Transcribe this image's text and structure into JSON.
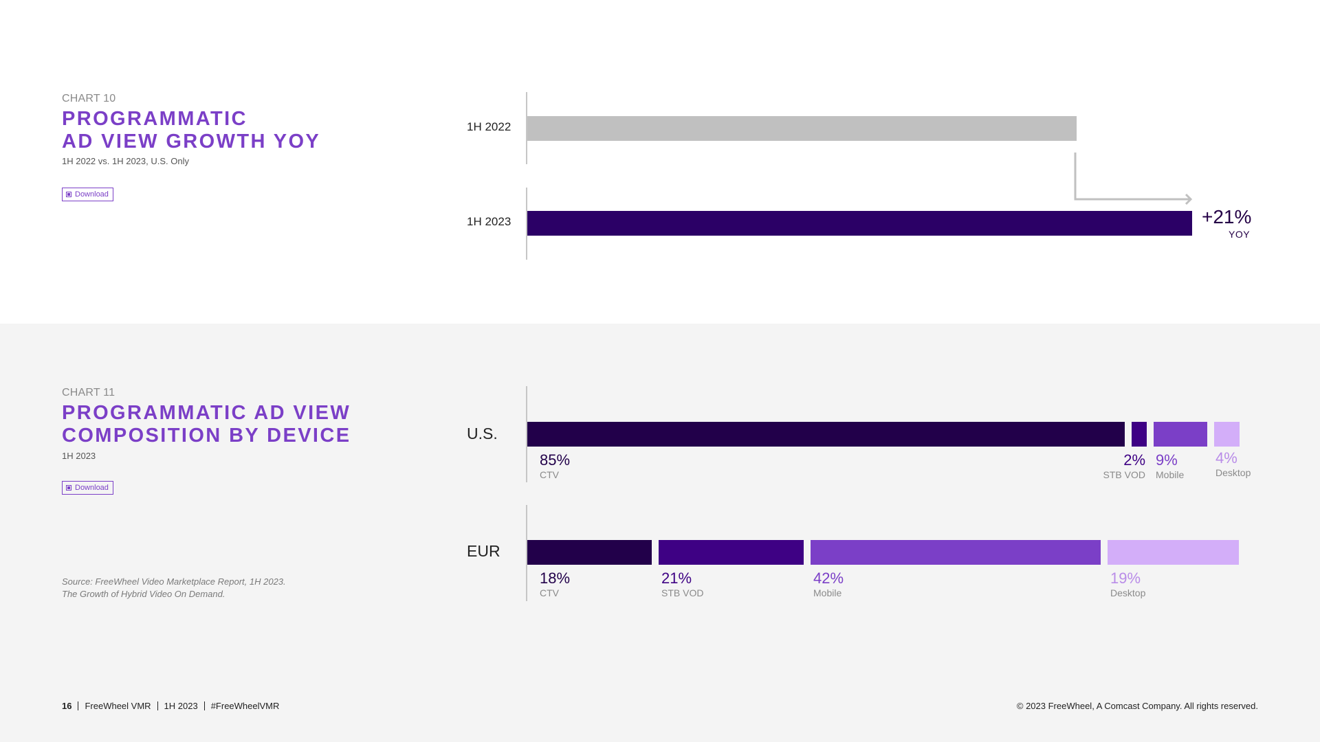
{
  "chart10": {
    "label": "CHART 10",
    "title_line1": "PROGRAMMATIC",
    "title_line2": "AD VIEW GROWTH YOY",
    "subtitle": "1H 2022 vs. 1H 2023, U.S. Only",
    "download_label": "Download"
  },
  "chart11": {
    "label": "CHART 11",
    "title_line1": "PROGRAMMATIC AD VIEW",
    "title_line2": "COMPOSITION BY DEVICE",
    "subtitle": "1H 2023",
    "download_label": "Download"
  },
  "source": {
    "line1": "Source: FreeWheel Video Marketplace Report, 1H 2023.",
    "line2": "The Growth of Hybrid Video On Demand."
  },
  "footer": {
    "page": "16",
    "report": "FreeWheel VMR",
    "period": "1H 2023",
    "hashtag": "#FreeWheelVMR",
    "copyright": "© 2023 FreeWheel, A Comcast Company. All rights reserved."
  },
  "colors": {
    "accent": "#7b3fc7",
    "ctv": "#22004a",
    "stb_vod": "#3e0184",
    "mobile": "#7b3fc7",
    "desktop": "#d3aef9",
    "bar_2022": "#c0c0c0",
    "bar_2023": "#2b0066"
  },
  "chart_data": [
    {
      "type": "bar",
      "orientation": "horizontal",
      "title": "PROGRAMMATIC AD VIEW GROWTH YOY",
      "subtitle": "1H 2022 vs. 1H 2023, U.S. Only",
      "categories": [
        "1H 2022",
        "1H 2023"
      ],
      "values": [
        100,
        121
      ],
      "value_unit": "index (1H 2022 = 100)",
      "annotation": {
        "value": "+21%",
        "label": "YOY"
      }
    },
    {
      "type": "bar",
      "stacked": true,
      "orientation": "horizontal",
      "title": "PROGRAMMATIC AD VIEW COMPOSITION BY DEVICE",
      "subtitle": "1H 2023",
      "categories": [
        "U.S.",
        "EUR"
      ],
      "series": [
        {
          "name": "CTV",
          "values": [
            85,
            18
          ],
          "labels": [
            "85%",
            "18%"
          ]
        },
        {
          "name": "STB VOD",
          "values": [
            2,
            21
          ],
          "labels": [
            "2%",
            "21%"
          ]
        },
        {
          "name": "Mobile",
          "values": [
            9,
            42
          ],
          "labels": [
            "9%",
            "42%"
          ]
        },
        {
          "name": "Desktop",
          "values": [
            4,
            19
          ],
          "labels": [
            "4%",
            "19%"
          ]
        }
      ]
    }
  ]
}
